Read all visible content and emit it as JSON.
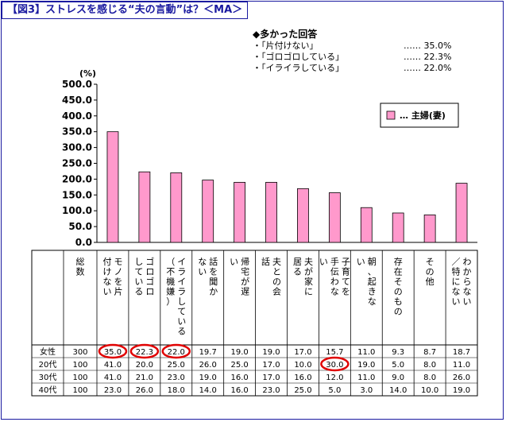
{
  "figure_title": "【図3】ストレスを感じる“夫の言動”は？＜MA＞",
  "summary": {
    "heading": "◆多かった回答",
    "items": [
      {
        "label": "・「片付けない」",
        "value": "…… 35.0%"
      },
      {
        "label": "・「ゴロゴロしている」",
        "value": "…… 22.3%"
      },
      {
        "label": "・「イライラしている」",
        "value": "…… 22.0%"
      }
    ]
  },
  "chart_data": {
    "type": "bar",
    "ylabel": "(%)",
    "ylim": [
      0,
      500
    ],
    "ytick_step": 50,
    "ytick_labels": [
      "0.0",
      "50.0",
      "100.0",
      "150.0",
      "200.0",
      "250.0",
      "300.0",
      "350.0",
      "400.0",
      "450.0",
      "500.0"
    ],
    "grid": false,
    "legend": {
      "position": "top-right",
      "entry": "… 主婦(妻)",
      "color": "#ff99cc"
    },
    "bar_color": "#ff99cc",
    "categories": [
      "片付けない",
      "ゴロゴロしている",
      "イライラしている(不機嫌)",
      "話を聞かない",
      "帰宅が遅い",
      "夫との会話",
      "夫が家に居る",
      "子育てを手伝わない",
      "朝、起きない",
      "存在そのもの",
      "その他",
      "わからない／特にない"
    ],
    "values": [
      35.0,
      22.3,
      22.0,
      19.7,
      19.0,
      19.0,
      17.0,
      15.7,
      11.0,
      9.3,
      8.7,
      18.7
    ]
  },
  "table": {
    "headers": [
      "総数",
      "モノを片付けない",
      "ゴロゴロしている",
      "イライラしている（不機嫌）",
      "話を聞かない",
      "帰宅が遅い",
      "夫との会話",
      "夫が家に居る",
      "子育てを手伝わない",
      "朝、起きない",
      "存在そのもの",
      "その他",
      "わからない／特にない"
    ],
    "rows": [
      {
        "label": "女性",
        "cells": [
          "300",
          "35.0",
          "22.3",
          "22.0",
          "19.7",
          "19.0",
          "19.0",
          "17.0",
          "15.7",
          "11.0",
          "9.3",
          "8.7",
          "18.7"
        ]
      },
      {
        "label": "20代",
        "cells": [
          "100",
          "41.0",
          "20.0",
          "25.0",
          "26.0",
          "25.0",
          "17.0",
          "10.0",
          "30.0",
          "19.0",
          "5.0",
          "8.0",
          "11.0"
        ]
      },
      {
        "label": "30代",
        "cells": [
          "100",
          "41.0",
          "21.0",
          "23.0",
          "19.0",
          "16.0",
          "17.0",
          "16.0",
          "12.0",
          "11.0",
          "9.0",
          "8.0",
          "26.0"
        ]
      },
      {
        "label": "40代",
        "cells": [
          "100",
          "23.0",
          "26.0",
          "18.0",
          "14.0",
          "16.0",
          "23.0",
          "25.0",
          "5.0",
          "3.0",
          "14.0",
          "10.0",
          "19.0"
        ]
      }
    ],
    "highlighted_cells": [
      [
        0,
        1
      ],
      [
        0,
        2
      ],
      [
        0,
        3
      ],
      [
        1,
        8
      ]
    ],
    "highlight_color": "#e00000"
  }
}
